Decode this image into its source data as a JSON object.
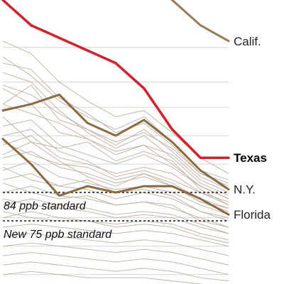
{
  "chart_data": {
    "type": "line",
    "title": "",
    "xlabel": "",
    "ylabel": "",
    "x_range": [
      0,
      8
    ],
    "y_range": [
      55,
      145
    ],
    "grid": true,
    "reference_lines": [
      {
        "label": "84 ppb standard",
        "value": 84,
        "style": "dashed"
      },
      {
        "label": "New 75 ppb standard",
        "value": 75,
        "style": "dashed"
      }
    ],
    "highlighted_series": [
      {
        "name": "Calif.",
        "x": [
          5,
          6,
          7,
          8
        ],
        "y": [
          152,
          145,
          137,
          132
        ],
        "color": "#9a7a55"
      },
      {
        "name": "Texas",
        "x": [
          0,
          1,
          2,
          3,
          4,
          5,
          6,
          7,
          8
        ],
        "y": [
          145,
          137,
          133,
          129,
          125,
          117,
          104,
          95,
          95
        ],
        "color": "#dd1c2a"
      },
      {
        "name": "N.Y.",
        "x": [
          0,
          1,
          2,
          3,
          4,
          5,
          6,
          7,
          8
        ],
        "y": [
          110,
          112,
          115,
          106,
          102,
          107,
          100,
          91,
          85
        ],
        "color": "#8b6a3e"
      },
      {
        "name": "Florida",
        "x": [
          0,
          1,
          2,
          3,
          4,
          5,
          6,
          7,
          8
        ],
        "y": [
          101,
          93,
          83,
          86,
          84,
          86,
          86,
          82,
          77
        ],
        "color": "#8b6a3e"
      }
    ],
    "background_series": [
      {
        "x": [
          0,
          1,
          2,
          3,
          4,
          5,
          6,
          7,
          8
        ],
        "y": [
          112,
          118,
          107,
          104,
          100,
          103,
          98,
          90,
          86
        ]
      },
      {
        "x": [
          0,
          1,
          2,
          3,
          4,
          5,
          6,
          7,
          8
        ],
        "y": [
          117,
          112,
          103,
          101,
          97,
          99,
          96,
          88,
          84
        ]
      },
      {
        "x": [
          0,
          1,
          2,
          3,
          4,
          5,
          6,
          7,
          8
        ],
        "y": [
          105,
          107,
          99,
          96,
          93,
          96,
          92,
          86,
          82
        ]
      },
      {
        "x": [
          0,
          1,
          2,
          3,
          4,
          5,
          6,
          7,
          8
        ],
        "y": [
          99,
          102,
          95,
          93,
          90,
          92,
          90,
          84,
          80
        ]
      },
      {
        "x": [
          0,
          1,
          2,
          3,
          4,
          5,
          6,
          7,
          8
        ],
        "y": [
          95,
          97,
          92,
          90,
          87,
          89,
          86,
          81,
          78
        ]
      },
      {
        "x": [
          0,
          1,
          2,
          3,
          4,
          5,
          6,
          7,
          8
        ],
        "y": [
          91,
          94,
          89,
          87,
          85,
          86,
          84,
          80,
          77
        ]
      },
      {
        "x": [
          0,
          1,
          2,
          3,
          4,
          5,
          6,
          7,
          8
        ],
        "y": [
          88,
          90,
          86,
          85,
          82,
          84,
          82,
          78,
          75
        ]
      },
      {
        "x": [
          0,
          1,
          2,
          3,
          4,
          5,
          6,
          7,
          8
        ],
        "y": [
          84,
          86,
          83,
          82,
          80,
          81,
          79,
          76,
          73
        ]
      },
      {
        "x": [
          0,
          1,
          2,
          3,
          4,
          5,
          6,
          7,
          8
        ],
        "y": [
          80,
          82,
          80,
          79,
          77,
          78,
          77,
          74,
          71
        ]
      },
      {
        "x": [
          0,
          1,
          2,
          3,
          4,
          5,
          6,
          7,
          8
        ],
        "y": [
          76,
          78,
          76,
          75,
          74,
          75,
          74,
          71,
          69
        ]
      },
      {
        "x": [
          0,
          1,
          2,
          3,
          4,
          5,
          6,
          7,
          8
        ],
        "y": [
          73,
          74,
          73,
          72,
          71,
          72,
          71,
          69,
          67
        ]
      },
      {
        "x": [
          0,
          1,
          2,
          3,
          4,
          5,
          6,
          7,
          8
        ],
        "y": [
          70,
          71,
          70,
          69,
          68,
          69,
          68,
          66,
          64
        ]
      },
      {
        "x": [
          0,
          1,
          2,
          3,
          4,
          5,
          6,
          7,
          8
        ],
        "y": [
          67,
          68,
          67,
          66,
          65,
          66,
          65,
          63,
          61
        ]
      },
      {
        "x": [
          0,
          1,
          2,
          3,
          4,
          5,
          6,
          7,
          8
        ],
        "y": [
          64,
          65,
          64,
          63,
          62,
          63,
          62,
          60,
          58
        ]
      },
      {
        "x": [
          0,
          1,
          2,
          3,
          4,
          5,
          6,
          7,
          8
        ],
        "y": [
          61,
          62,
          61,
          60,
          59,
          60,
          59,
          57,
          56
        ]
      },
      {
        "x": [
          0,
          1,
          2,
          3,
          4,
          5,
          6,
          7,
          8
        ],
        "y": [
          58,
          59,
          58,
          57,
          57,
          57,
          56,
          55,
          54
        ]
      },
      {
        "x": [
          0,
          1,
          2,
          3,
          4,
          5,
          6,
          7,
          8
        ],
        "y": [
          122,
          119,
          110,
          103,
          98,
          102,
          95,
          87,
          83
        ]
      },
      {
        "x": [
          0,
          1,
          2,
          3,
          4,
          5,
          6,
          7,
          8
        ],
        "y": [
          127,
          121,
          113,
          108,
          104,
          108,
          100,
          91,
          88
        ]
      },
      {
        "x": [
          0,
          1,
          2,
          3,
          4,
          5,
          6,
          7,
          8
        ],
        "y": [
          132,
          128,
          119,
          113,
          108,
          110,
          103,
          95,
          90
        ]
      },
      {
        "x": [
          0,
          1,
          2,
          3,
          4,
          5,
          6,
          7,
          8
        ],
        "y": [
          108,
          100,
          98,
          100,
          94,
          97,
          94,
          85,
          80
        ]
      },
      {
        "x": [
          0,
          1,
          2,
          3,
          4,
          5,
          6,
          7,
          8
        ],
        "y": [
          102,
          104,
          97,
          94,
          89,
          91,
          88,
          84,
          81
        ]
      },
      {
        "x": [
          0,
          1,
          2,
          3,
          4,
          5,
          6,
          7,
          8
        ],
        "y": [
          96,
          100,
          94,
          89,
          86,
          90,
          87,
          82,
          79
        ]
      },
      {
        "x": [
          0,
          1,
          2,
          3,
          4,
          5,
          6,
          7,
          8
        ],
        "y": [
          112,
          109,
          106,
          101,
          96,
          99,
          93,
          86,
          82
        ]
      },
      {
        "x": [
          0,
          1,
          2,
          3,
          4,
          5,
          6,
          7,
          8
        ],
        "y": [
          92,
          88,
          86,
          88,
          84,
          85,
          83,
          78,
          76
        ]
      },
      {
        "x": [
          0,
          1,
          2,
          3,
          4,
          5,
          6,
          7,
          8
        ],
        "y": [
          87,
          84,
          82,
          83,
          80,
          81,
          80,
          75,
          73
        ]
      },
      {
        "x": [
          0,
          1,
          2,
          3,
          4,
          5,
          6,
          7,
          8
        ],
        "y": [
          82,
          80,
          79,
          78,
          76,
          77,
          76,
          73,
          71
        ]
      },
      {
        "x": [
          0,
          1,
          2,
          3,
          4,
          5,
          6,
          7,
          8
        ],
        "y": [
          78,
          76,
          75,
          75,
          73,
          74,
          73,
          70,
          68
        ]
      },
      {
        "x": [
          0,
          1,
          2,
          3,
          4,
          5,
          6,
          7,
          8
        ],
        "y": [
          118,
          115,
          109,
          104,
          99,
          104,
          97,
          89,
          85
        ]
      },
      {
        "x": [
          0,
          1,
          2,
          3,
          4,
          5,
          6,
          7,
          8
        ],
        "y": [
          125,
          123,
          114,
          109,
          103,
          106,
          99,
          90,
          87
        ]
      },
      {
        "x": [
          0,
          1,
          2,
          3,
          4,
          5,
          6,
          7,
          8
        ],
        "y": [
          100,
          96,
          93,
          92,
          88,
          90,
          86,
          81,
          79
        ]
      }
    ],
    "grid_values": [
      58,
      67,
      76,
      93,
      102,
      111,
      119,
      130
    ],
    "colors": {
      "background_series": "#b8aa98",
      "grid": "#d8d8d8",
      "reference_line": "#444444"
    }
  }
}
